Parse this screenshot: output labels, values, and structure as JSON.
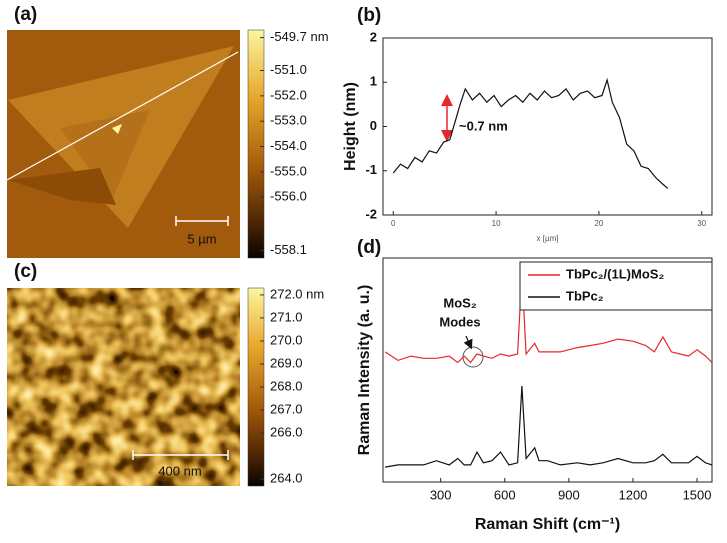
{
  "chart_data": [
    {
      "type": "image",
      "label": "(a)",
      "scale_bar": "5 µm",
      "clim": [
        -558.4,
        -549.4
      ],
      "cticks": [
        {
          "value": -549.7,
          "label": "-549.7 nm"
        },
        {
          "value": -551.0,
          "label": "-551.0"
        },
        {
          "value": -552.0,
          "label": "-552.0"
        },
        {
          "value": -553.0,
          "label": "-553.0"
        },
        {
          "value": -554.0,
          "label": "-554.0"
        },
        {
          "value": -555.0,
          "label": "-555.0"
        },
        {
          "value": -556.0,
          "label": "-556.0"
        },
        {
          "value": -558.1,
          "label": "-558.1"
        }
      ]
    },
    {
      "type": "line",
      "label": "(b)",
      "xlabel": "x [µm]",
      "ylabel": "Height (nm)",
      "xlim": [
        -1,
        31
      ],
      "ylim": [
        -2,
        2
      ],
      "xticks": [
        0,
        10,
        20,
        30
      ],
      "yticks": [
        -2,
        -1,
        0,
        1,
        2
      ],
      "annotation": "~0.7 nm",
      "annotation_color": "#e8262b",
      "series": [
        {
          "color": "#111111",
          "x": [
            0,
            0.7,
            1.4,
            2.1,
            2.8,
            3.5,
            4.2,
            4.9,
            5.5,
            6.0,
            6.5,
            7.0,
            7.7,
            8.4,
            9.1,
            9.8,
            10.5,
            11.2,
            11.9,
            12.6,
            13.3,
            14.0,
            14.7,
            15.4,
            16.1,
            16.8,
            17.5,
            18.2,
            18.9,
            19.6,
            20.3,
            20.8,
            21.3,
            22.0,
            22.7,
            23.4,
            24.1,
            24.8,
            25.5,
            26.2,
            26.7
          ],
          "values": [
            -1.05,
            -0.85,
            -0.95,
            -0.7,
            -0.8,
            -0.55,
            -0.6,
            -0.35,
            -0.3,
            0.1,
            0.5,
            0.85,
            0.6,
            0.75,
            0.55,
            0.7,
            0.45,
            0.6,
            0.7,
            0.55,
            0.75,
            0.6,
            0.8,
            0.65,
            0.7,
            0.85,
            0.6,
            0.75,
            0.8,
            0.65,
            0.7,
            1.05,
            0.55,
            0.2,
            -0.4,
            -0.55,
            -0.9,
            -0.95,
            -1.15,
            -1.3,
            -1.4
          ]
        }
      ]
    },
    {
      "type": "image",
      "label": "(c)",
      "scale_bar": "400 nm",
      "clim": [
        263.7,
        272.3
      ],
      "cticks": [
        {
          "value": 272.0,
          "label": "272.0 nm"
        },
        {
          "value": 271.0,
          "label": "271.0"
        },
        {
          "value": 270.0,
          "label": "270.0"
        },
        {
          "value": 269.0,
          "label": "269.0"
        },
        {
          "value": 268.0,
          "label": "268.0"
        },
        {
          "value": 267.0,
          "label": "267.0"
        },
        {
          "value": 266.0,
          "label": "266.0"
        },
        {
          "value": 264.0,
          "label": "264.0"
        }
      ]
    },
    {
      "type": "line",
      "label": "(d)",
      "xlabel": "Raman Shift (cm⁻¹)",
      "ylabel": "Raman Intensity (a. u.)",
      "xlim": [
        30,
        1570
      ],
      "ylim": [
        0,
        10.5
      ],
      "xticks": [
        300,
        600,
        900,
        1200,
        1500
      ],
      "legend": "upper right",
      "annotation": [
        "MoS₂",
        "Modes"
      ],
      "x": [
        40,
        100,
        160,
        220,
        280,
        340,
        380,
        410,
        440,
        470,
        500,
        540,
        580,
        620,
        660,
        680,
        700,
        740,
        760,
        800,
        860,
        940,
        1000,
        1060,
        1130,
        1200,
        1260,
        1300,
        1340,
        1380,
        1420,
        1460,
        1500,
        1540,
        1570
      ],
      "series": [
        {
          "name": "TbPc₂/(1L)MoS₂",
          "color": "#e8262b",
          "values": [
            6.1,
            5.7,
            5.9,
            5.8,
            5.8,
            5.9,
            5.6,
            5.9,
            5.6,
            6.0,
            5.9,
            5.8,
            6.0,
            5.9,
            6.0,
            9.8,
            6.0,
            6.5,
            6.1,
            6.1,
            6.1,
            6.3,
            6.4,
            6.5,
            6.7,
            6.6,
            6.4,
            6.1,
            6.8,
            6.1,
            6.0,
            5.9,
            6.2,
            5.9,
            5.6
          ]
        },
        {
          "name": "TbPc₂",
          "color": "#111111",
          "values": [
            0.7,
            0.8,
            0.8,
            0.8,
            1.0,
            0.8,
            1.1,
            0.8,
            0.8,
            1.4,
            0.9,
            1.0,
            1.4,
            0.8,
            0.9,
            4.5,
            1.1,
            1.6,
            1.0,
            1.0,
            0.8,
            0.9,
            0.8,
            0.9,
            1.1,
            0.9,
            0.9,
            1.0,
            1.3,
            0.9,
            0.9,
            0.9,
            1.2,
            0.9,
            0.8
          ]
        }
      ]
    }
  ]
}
